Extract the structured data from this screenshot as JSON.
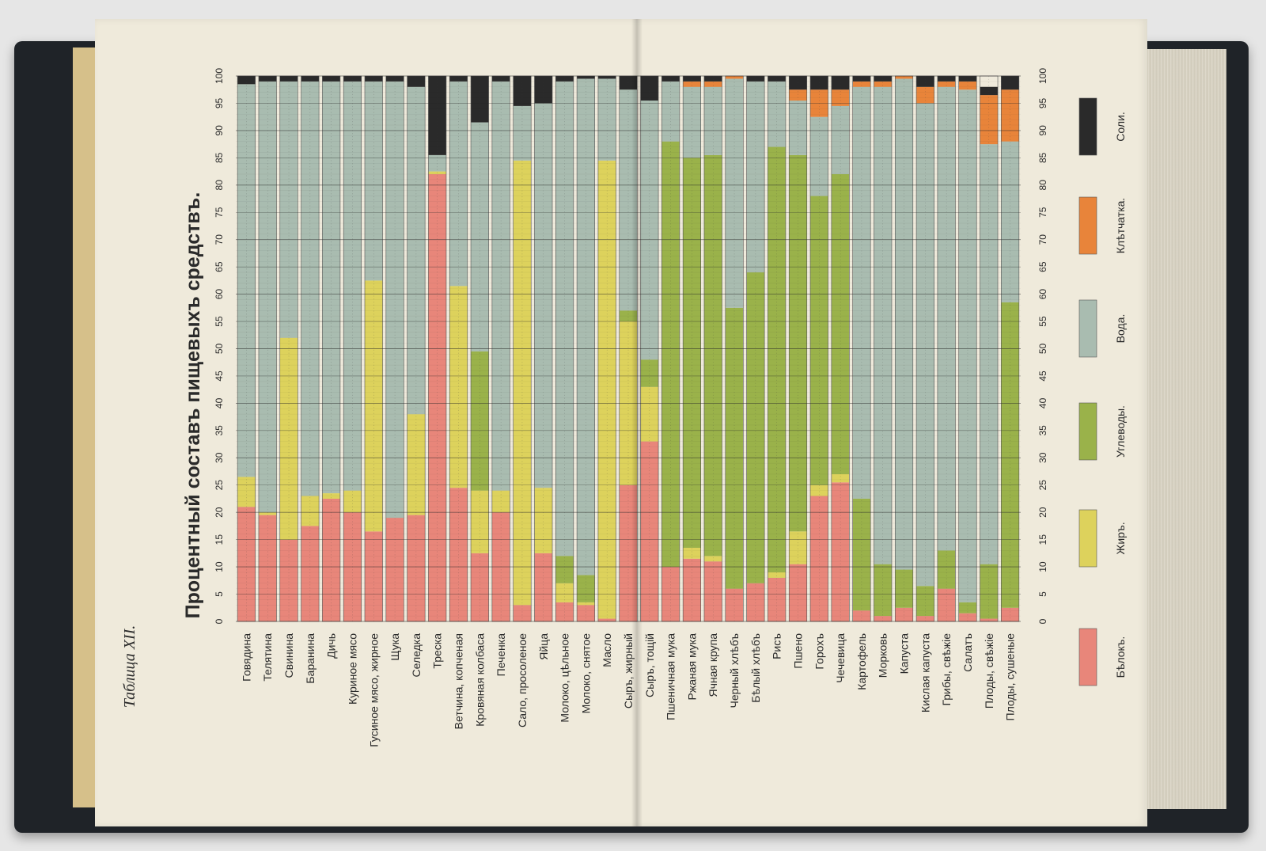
{
  "page_number_label": "Таблица XII.",
  "chart_data": {
    "type": "bar",
    "stacked": true,
    "orientation": "vertical, printed rotated 90° on the page",
    "title": "Процентный составъ пищевыхъ средствъ.",
    "xlabel": "",
    "ylabel": "",
    "ylim": [
      0,
      100
    ],
    "yticks": [
      0,
      5,
      10,
      15,
      20,
      25,
      30,
      35,
      40,
      45,
      50,
      55,
      60,
      65,
      70,
      75,
      80,
      85,
      90,
      95,
      100
    ],
    "grid": true,
    "legend_position": "right",
    "categories": [
      "Говядина",
      "Телятина",
      "Свинина",
      "Баранина",
      "Дичь",
      "Куриное мясо",
      "Гусиное мясо, жирное",
      "Щука",
      "Селедка",
      "Треска",
      "Ветчина, копченая",
      "Кровяная колбаса",
      "Печенка",
      "Сало, просоленое",
      "Яйца",
      "Молоко, цѣльное",
      "Молоко, снятое",
      "Масло",
      "Сыръ, жирный",
      "Сыръ, тощій",
      "Пшеничная мука",
      "Ржаная мука",
      "Ячная крупа",
      "Черный хлѣбъ",
      "Бѣлый хлѣбъ",
      "Рисъ",
      "Пшено",
      "Горохъ",
      "Чечевица",
      "Картофель",
      "Морковь",
      "Капуста",
      "Кислая капуста",
      "Грибы, свѣжіе",
      "Салатъ",
      "Плоды, свѣжіе",
      "Плоды, сушеные"
    ],
    "series": [
      {
        "name": "Бѣлокъ.",
        "color": "#e8867a",
        "values": [
          21,
          19.5,
          15,
          17.5,
          22.5,
          20,
          16.5,
          19,
          19.5,
          82,
          24.5,
          12.5,
          20,
          3,
          12.5,
          3.5,
          3,
          0.5,
          25,
          33,
          10,
          11.5,
          11,
          6,
          7,
          8,
          10.5,
          23,
          25.5,
          2,
          1,
          2.5,
          1,
          6,
          1.5,
          0.5,
          2.5
        ]
      },
      {
        "name": "Жиръ.",
        "color": "#ddd25c",
        "values": [
          5.5,
          0.5,
          37,
          5.5,
          1,
          4,
          46,
          0,
          18.5,
          0.5,
          37,
          11.5,
          4,
          81.5,
          12,
          3.5,
          0.5,
          84,
          30,
          10,
          0,
          2,
          1,
          0,
          0,
          1,
          6,
          2,
          1.5,
          0,
          0,
          0,
          0,
          0,
          0,
          0,
          0
        ]
      },
      {
        "name": "Углеводы.",
        "color": "#9ab24a",
        "values": [
          0,
          0,
          0,
          0,
          0,
          0,
          0,
          0,
          0,
          0,
          0,
          25.5,
          0,
          0,
          0,
          5,
          5,
          0,
          2,
          5,
          78,
          71.5,
          73.5,
          51.5,
          57,
          78,
          69,
          53,
          55,
          20.5,
          9.5,
          7,
          5.5,
          7,
          2,
          10,
          56
        ]
      },
      {
        "name": "Вода.",
        "color": "#a9bcb0",
        "values": [
          72,
          79,
          47,
          76,
          75.5,
          75,
          36.5,
          80,
          60,
          3,
          37.5,
          42,
          75,
          10,
          70.5,
          87,
          91,
          15,
          40.5,
          47.5,
          11,
          13,
          12.5,
          42,
          35,
          12,
          10,
          14.5,
          12.5,
          75.5,
          87.5,
          90,
          88.5,
          85,
          94,
          77,
          29.5
        ]
      },
      {
        "name": "Клѣтчатка.",
        "color": "#e8843a",
        "values": [
          0,
          0,
          0,
          0,
          0,
          0,
          0,
          0,
          0,
          0,
          0,
          0,
          0,
          0,
          0,
          0,
          0,
          0,
          0,
          0,
          0,
          1,
          1,
          0.5,
          0,
          0,
          2,
          5,
          3,
          1,
          1,
          0.5,
          3,
          1,
          1.5,
          9,
          9.5
        ]
      },
      {
        "name": "Соли.",
        "color": "#2a2a2a",
        "values": [
          1.5,
          1,
          1,
          1,
          1,
          1,
          1,
          1,
          2,
          14.5,
          1,
          8.5,
          1,
          5.5,
          5,
          1,
          0.5,
          0.5,
          2.5,
          4.5,
          1,
          1,
          1,
          0,
          1,
          1,
          2.5,
          2.5,
          2.5,
          1,
          1,
          0,
          2,
          1,
          1,
          1.5,
          2.5
        ]
      }
    ]
  }
}
